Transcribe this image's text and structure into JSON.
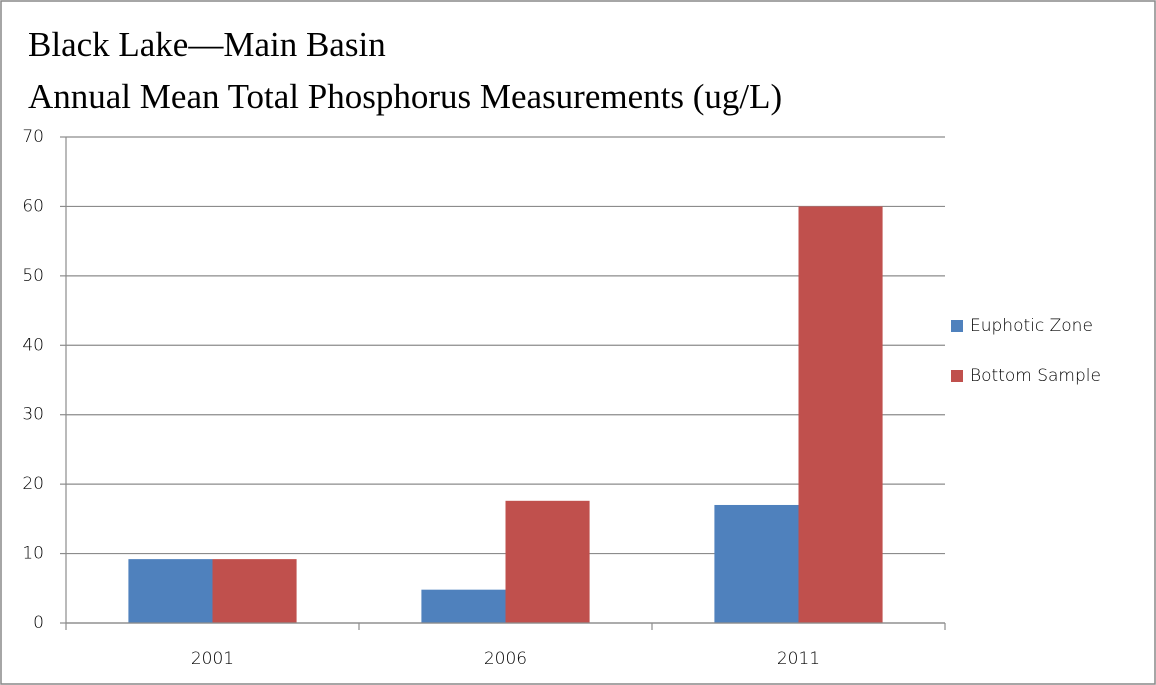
{
  "chart_data": {
    "type": "bar",
    "title": "Black Lake—Main Basin",
    "subtitle": "Annual Mean Total Phosphorus Measurements (ug/L)",
    "categories": [
      "2001",
      "2006",
      "2011"
    ],
    "series": [
      {
        "name": "Euphotic Zone",
        "color": "#4f81bd",
        "values": [
          9.2,
          4.8,
          17
        ]
      },
      {
        "name": "Bottom Sample",
        "color": "#c0504d",
        "values": [
          9.2,
          17.6,
          60
        ]
      }
    ],
    "ylim": [
      0,
      70
    ],
    "yticks": [
      0,
      10,
      20,
      30,
      40,
      50,
      60,
      70
    ],
    "grid": true,
    "legend": "right"
  }
}
